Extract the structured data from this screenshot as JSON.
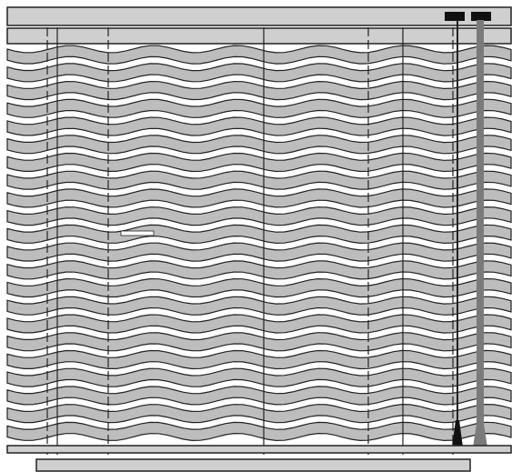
{
  "illustration": {
    "subject": "venetian-blind-drawing",
    "slat_count": 22,
    "colors": {
      "background": "#ffffff",
      "slat_fill": "#bdbdbd",
      "rail_fill": "#cfcfcf",
      "outline": "#222222",
      "wand": "#7a7a7a",
      "clip": "#111111",
      "gap": "#ffffff"
    },
    "icons": [
      "headrail",
      "slat",
      "ladder-cord",
      "tilt-wand",
      "pull-cord",
      "bottom-rail"
    ]
  }
}
